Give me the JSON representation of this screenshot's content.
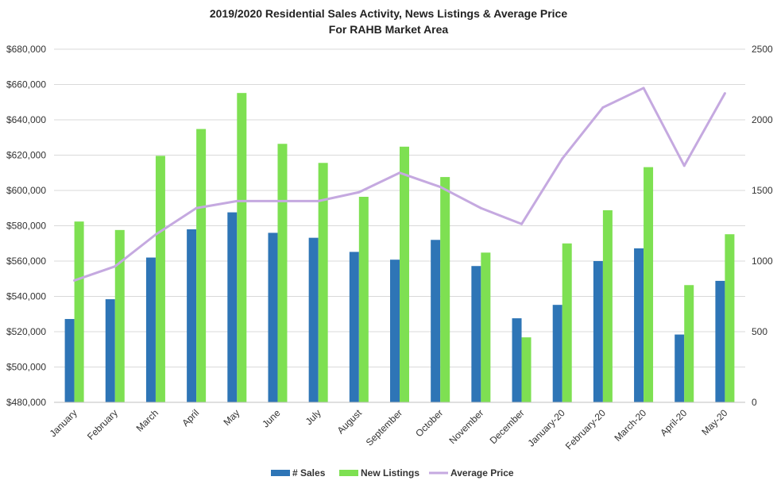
{
  "chart_data": {
    "type": "bar",
    "title": "2019/2020 Residential Sales Activity, News Listings & Average Price",
    "subtitle": "For RAHB Market Area",
    "categories": [
      "January",
      "February",
      "March",
      "April",
      "May",
      "June",
      "July",
      "August",
      "September",
      "October",
      "November",
      "December",
      "January-20",
      "February-20",
      "March-20",
      "April-20",
      "May-20"
    ],
    "left_axis": {
      "min": 480000,
      "max": 680000,
      "ticks": [
        "$480,000",
        "$500,000",
        "$520,000",
        "$540,000",
        "$560,000",
        "$580,000",
        "$600,000",
        "$620,000",
        "$640,000",
        "$660,000",
        "$680,000"
      ]
    },
    "right_axis": {
      "min": 0,
      "max": 2500,
      "ticks": [
        "0",
        "500",
        "1000",
        "1500",
        "2000",
        "2500"
      ]
    },
    "grid": true,
    "legend_position": "bottom",
    "series": [
      {
        "name": "# Sales",
        "type": "bar",
        "axis": "right",
        "color": "#2e75b6",
        "values": [
          590,
          730,
          1025,
          1225,
          1345,
          1200,
          1165,
          1065,
          1010,
          1150,
          965,
          595,
          690,
          1000,
          1090,
          480,
          860
        ]
      },
      {
        "name": "New Listings",
        "type": "bar",
        "axis": "right",
        "color": "#7ee052",
        "values": [
          1280,
          1220,
          1745,
          1935,
          2190,
          1830,
          1695,
          1455,
          1810,
          1595,
          1060,
          460,
          1125,
          1360,
          1665,
          830,
          1190
        ]
      },
      {
        "name": "Average Price",
        "type": "line",
        "axis": "left",
        "color": "#c5a9e0",
        "values": [
          549000,
          557000,
          575000,
          590000,
          594000,
          594000,
          594000,
          599000,
          610000,
          602000,
          590000,
          581000,
          618000,
          647000,
          658000,
          614000,
          655000
        ]
      }
    ]
  }
}
